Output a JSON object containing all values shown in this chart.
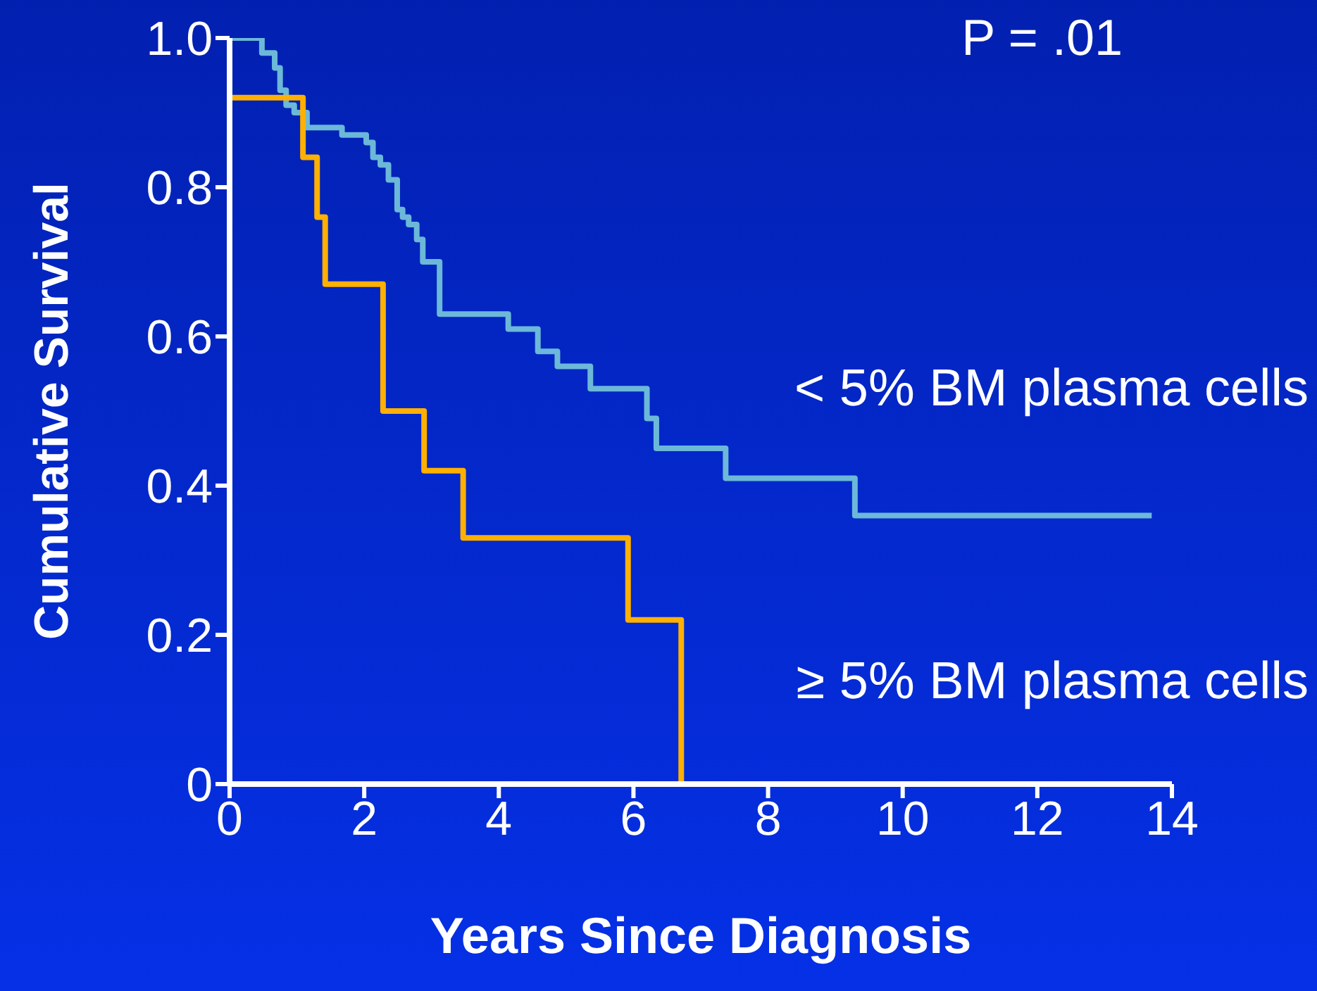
{
  "chart_data": {
    "type": "step",
    "xlabel": "Years Since Diagnosis",
    "ylabel": "Cumulative Survival",
    "xlim": [
      0,
      14
    ],
    "xticks": [
      0,
      2,
      4,
      6,
      8,
      10,
      12,
      14
    ],
    "ylim": [
      0,
      1
    ],
    "yticks": [
      0,
      0.2,
      0.4,
      0.6,
      0.8,
      {
        "value": 1,
        "label": "1.0"
      }
    ],
    "marker": "none",
    "line_style": "solid",
    "annotations": [
      "P = .01"
    ],
    "series": [
      {
        "name": "< 5% BM plasma cells",
        "color": "#6bb8d8",
        "x": [
          0,
          0.48,
          0.67,
          0.75,
          0.84,
          0.96,
          1.15,
          1.67,
          2.03,
          2.13,
          2.24,
          2.36,
          2.49,
          2.57,
          2.66,
          2.78,
          2.87,
          3.12,
          4.14,
          4.58,
          4.87,
          5.36,
          6.2,
          6.34,
          7.37,
          9.29,
          13.7
        ],
        "values": [
          1,
          0.98,
          0.96,
          0.93,
          0.91,
          0.9,
          0.88,
          0.87,
          0.86,
          0.84,
          0.83,
          0.81,
          0.77,
          0.76,
          0.75,
          0.73,
          0.7,
          0.63,
          0.61,
          0.58,
          0.56,
          0.53,
          0.49,
          0.45,
          0.41,
          0.36,
          0.36
        ]
      },
      {
        "name": "≥ 5% BM plasma cells",
        "color": "#ffb000",
        "x": [
          0,
          0,
          1.09,
          1.3,
          1.42,
          2.28,
          2.89,
          3.47,
          5.92,
          6.71
        ],
        "values": [
          1,
          0.92,
          0.84,
          0.76,
          0.67,
          0.5,
          0.42,
          0.33,
          0.22,
          0
        ]
      }
    ]
  }
}
